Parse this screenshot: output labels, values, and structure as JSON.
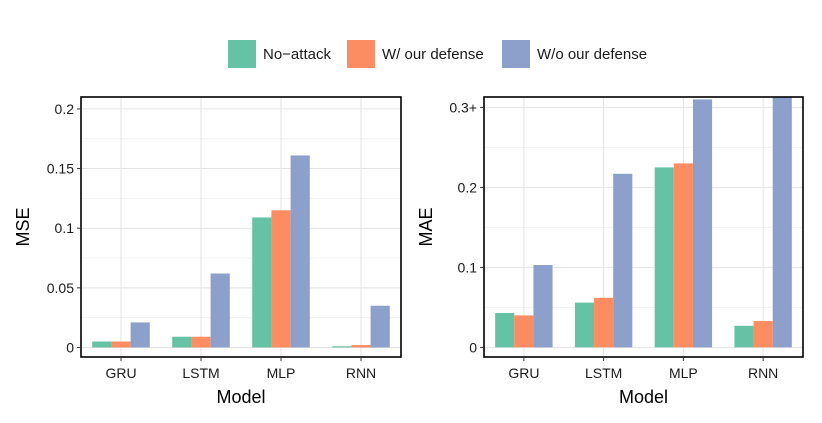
{
  "legend": {
    "items": [
      {
        "label": "No−attack",
        "color": "#66c2a5"
      },
      {
        "label": "W/ our defense",
        "color": "#fc8d62"
      },
      {
        "label": "W/o our defense",
        "color": "#8da0cb"
      }
    ]
  },
  "chart_data": [
    {
      "type": "bar",
      "title": "",
      "xlabel": "Model",
      "ylabel": "MSE",
      "categories": [
        "GRU",
        "LSTM",
        "MLP",
        "RNN"
      ],
      "ylim": [
        -0.008,
        0.21
      ],
      "yticks": [
        0,
        0.05,
        0.1,
        0.15,
        0.2
      ],
      "ytick_labels": [
        "0",
        "0.05",
        "0.1",
        "0.15",
        "0.2"
      ],
      "grid": true,
      "series": [
        {
          "name": "No−attack",
          "values": [
            0.005,
            0.009,
            0.109,
            0.001
          ]
        },
        {
          "name": "W/ our defense",
          "values": [
            0.005,
            0.009,
            0.115,
            0.002
          ]
        },
        {
          "name": "W/o our defense",
          "values": [
            0.021,
            0.062,
            0.161,
            0.035
          ]
        }
      ]
    },
    {
      "type": "bar",
      "title": "",
      "xlabel": "Model",
      "ylabel": "MAE",
      "categories": [
        "GRU",
        "LSTM",
        "MLP",
        "RNN"
      ],
      "ylim": [
        -0.012,
        0.313
      ],
      "yticks": [
        0,
        0.1,
        0.2,
        0.3
      ],
      "ytick_labels": [
        "0",
        "0.1",
        "0.2",
        "0.3+"
      ],
      "grid": true,
      "series": [
        {
          "name": "No−attack",
          "values": [
            0.043,
            0.056,
            0.225,
            0.027
          ]
        },
        {
          "name": "W/ our defense",
          "values": [
            0.04,
            0.062,
            0.23,
            0.033
          ]
        },
        {
          "name": "W/o our defense",
          "values": [
            0.103,
            0.217,
            0.31,
            0.313
          ]
        }
      ]
    }
  ]
}
